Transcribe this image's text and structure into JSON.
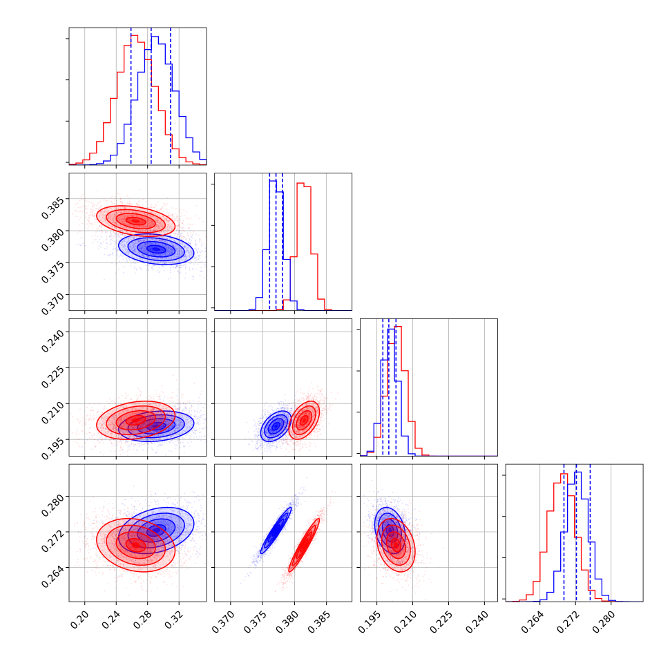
{
  "chart_data": {
    "type": "corner",
    "colors": {
      "series_a": "#0000ff",
      "series_b": "#ff0000"
    },
    "grid": true,
    "legend": "none",
    "params": [
      {
        "range": [
          0.18,
          0.355
        ],
        "ticks": [
          0.2,
          0.24,
          0.28,
          0.32
        ],
        "tick_labels": [
          "0.20",
          "0.24",
          "0.28",
          "0.32"
        ]
      },
      {
        "range": [
          0.3675,
          0.389
        ],
        "ticks": [
          0.37,
          0.375,
          0.38,
          0.385
        ],
        "tick_labels": [
          "0.370",
          "0.375",
          "0.380",
          "0.385"
        ]
      },
      {
        "range": [
          0.188,
          0.2455
        ],
        "ticks": [
          0.195,
          0.21,
          0.225,
          0.24
        ],
        "tick_labels": [
          "0.195",
          "0.210",
          "0.225",
          "0.240"
        ]
      },
      {
        "range": [
          0.2563,
          0.2872
        ],
        "ticks": [
          0.264,
          0.272,
          0.28
        ],
        "tick_labels": [
          "0.264",
          "0.272",
          "0.280"
        ]
      }
    ],
    "quantiles": [
      [
        0.2588,
        0.2845,
        0.3093
      ],
      [
        0.3761,
        0.3771,
        0.3781
      ],
      [
        0.1975,
        0.2,
        0.203
      ],
      [
        0.2694,
        0.2722,
        0.2753
      ]
    ],
    "series_a_stats": {
      "mean": [
        0.291,
        0.3771,
        0.2005,
        0.2723
      ],
      "std": [
        0.024,
        0.0012,
        0.0032,
        0.0026
      ],
      "corr": {
        "1_0": -0.25,
        "2_0": 0.2,
        "2_1": 0.45,
        "3_0": 0.3,
        "3_1": 0.95,
        "3_2": -0.25
      }
    },
    "series_b_stats": {
      "mean": [
        0.265,
        0.3815,
        0.203,
        0.269
      ],
      "std": [
        0.025,
        0.0012,
        0.004,
        0.003
      ],
      "corr": {
        "1_0": -0.35,
        "2_0": 0.25,
        "2_1": 0.45,
        "3_0": -0.2,
        "3_1": 0.95,
        "3_2": -0.25
      }
    }
  }
}
